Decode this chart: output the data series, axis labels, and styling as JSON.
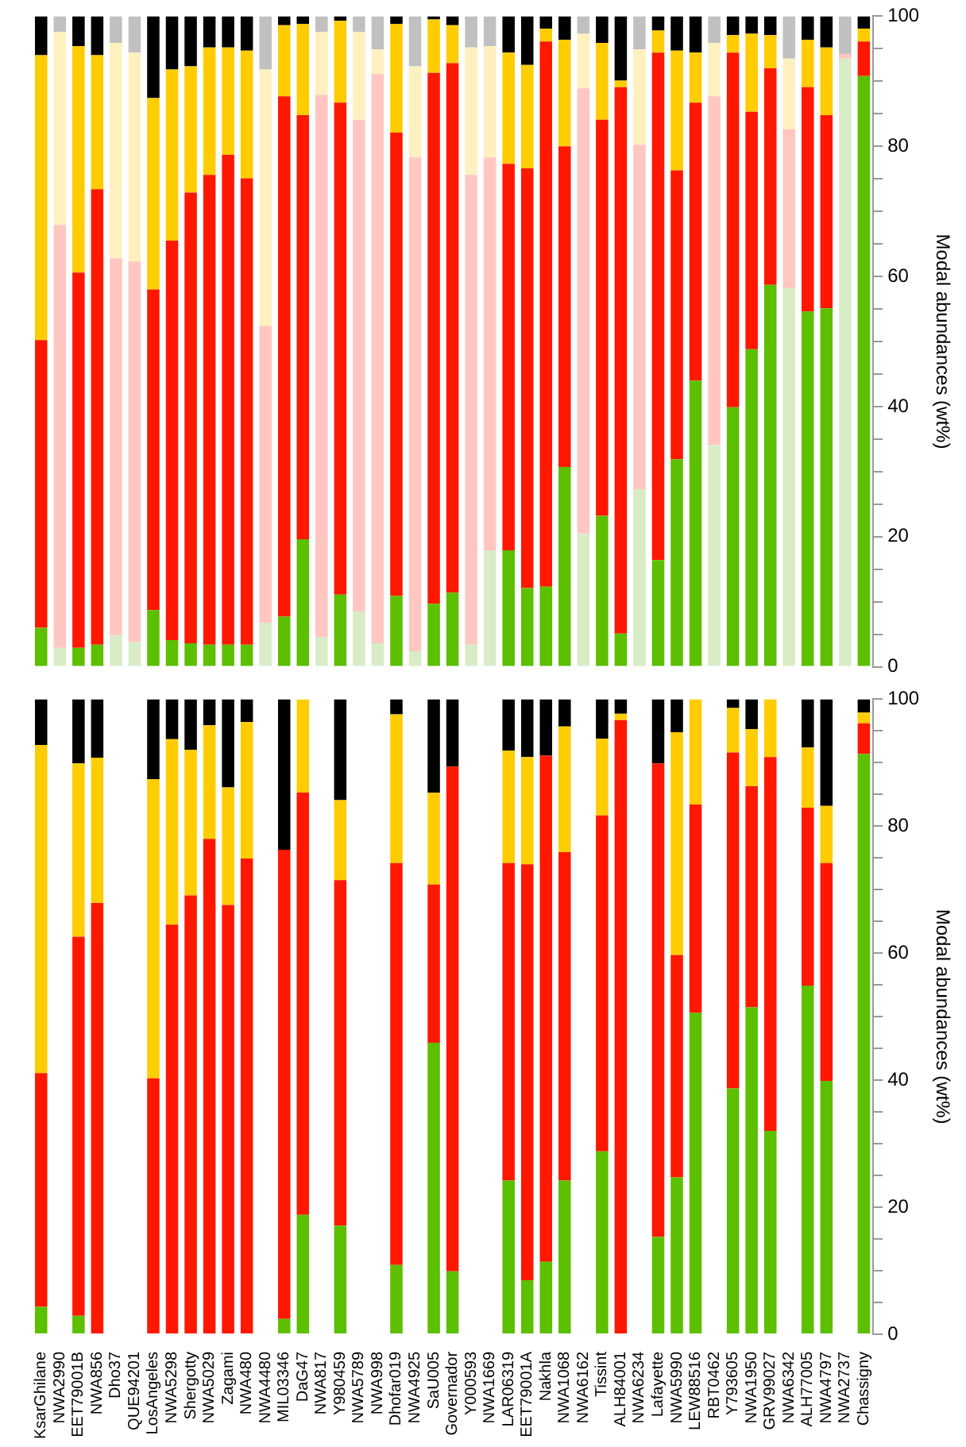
{
  "chart_data": [
    {
      "type": "bar",
      "stacked": true,
      "tick_labels": "y",
      "legend": false,
      "ylabel": "Modal abundances (wt%)",
      "categories": [
        null,
        null,
        null,
        null,
        null,
        null,
        null,
        null,
        null,
        null,
        null,
        null,
        null,
        null,
        null,
        null,
        null,
        null,
        null,
        null,
        null,
        null,
        null,
        null,
        null,
        null,
        null,
        null,
        null,
        null,
        null,
        null,
        null,
        null,
        null,
        null,
        null,
        null,
        null,
        null,
        null,
        null,
        null,
        null,
        null
      ],
      "ylim": [
        0,
        100
      ],
      "yticks": [
        0,
        {
          "value": 5,
          "label": null
        },
        {
          "value": 10,
          "label": null
        },
        {
          "value": 15,
          "label": null
        },
        20,
        {
          "value": 25,
          "label": null
        },
        {
          "value": 30,
          "label": null
        },
        {
          "value": 35,
          "label": null
        },
        40,
        {
          "value": 45,
          "label": null
        },
        {
          "value": 50,
          "label": null
        },
        {
          "value": 55,
          "label": null
        },
        60,
        {
          "value": 65,
          "label": null
        },
        {
          "value": 70,
          "label": null
        },
        {
          "value": 75,
          "label": null
        },
        80,
        {
          "value": 85,
          "label": null
        },
        {
          "value": 90,
          "label": null
        },
        {
          "value": 95,
          "label": null
        },
        100
      ],
      "series": [
        {
          "colors": [
            "#5cbf00",
            "#d8ecc6",
            "#5cbf00",
            "#5cbf00",
            "#d8ecc6",
            "#d8ecc6",
            "#5cbf00",
            "#5cbf00",
            "#5cbf00",
            "#5cbf00",
            "#5cbf00",
            "#5cbf00",
            "#d8ecc6",
            "#5cbf00",
            "#5cbf00",
            "#d8ecc6",
            "#5cbf00",
            "#d8ecc6",
            "#d8ecc6",
            "#5cbf00",
            "#d8ecc6",
            "#5cbf00",
            "#5cbf00",
            "#d8ecc6",
            "#d8ecc6",
            "#5cbf00",
            "#5cbf00",
            "#5cbf00",
            "#5cbf00",
            "#d8ecc6",
            "#5cbf00",
            "#5cbf00",
            "#d8ecc6",
            "#5cbf00",
            "#5cbf00",
            "#5cbf00",
            "#d8ecc6",
            "#5cbf00",
            "#5cbf00",
            "#5cbf00",
            "#d8ecc6",
            "#5cbf00",
            "#5cbf00",
            "#d8ecc6",
            "#5cbf00"
          ],
          "values": [
            6,
            2.9,
            2.9,
            3.4,
            4.8,
            3.8,
            8.7,
            4.1,
            3.6,
            3.4,
            3.4,
            3.4,
            6.8,
            7.7,
            19.6,
            4.6,
            11.1,
            8.5,
            3.6,
            10.9,
            2.4,
            9.7,
            11.4,
            3.4,
            17.9,
            17.9,
            12.1,
            12.3,
            30.7,
            20.5,
            23.2,
            5.1,
            27.3,
            16.4,
            31.9,
            44,
            34.1,
            39.9,
            48.8,
            58.7,
            58.2,
            54.6,
            55.1,
            93.5,
            90.8
          ]
        },
        {
          "colors": [
            "#ff1700",
            "#ffc6c2",
            "#ff1700",
            "#ff1700",
            "#ffc6c2",
            "#ffc6c2",
            "#ff1700",
            "#ff1700",
            "#ff1700",
            "#ff1700",
            "#ff1700",
            "#ff1700",
            "#ffc6c2",
            "#ff1700",
            "#ff1700",
            "#ffc6c2",
            "#ff1700",
            "#ffc6c2",
            "#ffc6c2",
            "#ff1700",
            "#ffc6c2",
            "#ff1700",
            "#ff1700",
            "#ffc6c2",
            "#ffc6c2",
            "#ff1700",
            "#ff1700",
            "#ff1700",
            "#ff1700",
            "#ffc6c2",
            "#ff1700",
            "#ff1700",
            "#ffc6c2",
            "#ff1700",
            "#ff1700",
            "#ff1700",
            "#ffc6c2",
            "#ff1700",
            "#ff1700",
            "#ff1700",
            "#ffc6c2",
            "#ff1700",
            "#ff1700",
            "#ffc6c2",
            "#ff1700"
          ],
          "values": [
            44.2,
            65,
            57.7,
            70,
            58,
            58.5,
            49.3,
            61.4,
            69.3,
            72.2,
            75.3,
            71.7,
            45.6,
            80,
            65.2,
            83.3,
            75.6,
            75.6,
            87.5,
            71.2,
            75.9,
            81.6,
            81.4,
            72.2,
            60.4,
            59.4,
            64.5,
            83.8,
            49.3,
            68.4,
            60.9,
            84,
            52.9,
            78,
            44.4,
            42.7,
            53.6,
            54.5,
            36.5,
            33.3,
            24.4,
            34.5,
            29.7,
            0.7,
            5.3
          ]
        },
        {
          "colors": [
            "#ffcc00",
            "#fff0c0",
            "#ffcc00",
            "#ffcc00",
            "#fff0c0",
            "#fff0c0",
            "#ffcc00",
            "#ffcc00",
            "#ffcc00",
            "#ffcc00",
            "#ffcc00",
            "#ffcc00",
            "#fff0c0",
            "#ffcc00",
            "#ffcc00",
            "#fff0c0",
            "#ffcc00",
            "#fff0c0",
            "#fff0c0",
            "#ffcc00",
            "#fff0c0",
            "#ffcc00",
            "#ffcc00",
            "#fff0c0",
            "#fff0c0",
            "#ffcc00",
            "#ffcc00",
            "#ffcc00",
            "#ffcc00",
            "#fff0c0",
            "#ffcc00",
            "#ffcc00",
            "#fff0c0",
            "#ffcc00",
            "#ffcc00",
            "#ffcc00",
            "#fff0c0",
            "#ffcc00",
            "#ffcc00",
            "#ffcc00",
            "#fff0c0",
            "#ffcc00",
            "#ffcc00",
            "#fff0c0",
            "#ffcc00"
          ],
          "values": [
            43.8,
            29.7,
            34.8,
            20.6,
            33.1,
            32.1,
            29.4,
            26.3,
            19.4,
            19.6,
            16.5,
            19.6,
            39.4,
            10.9,
            14,
            9.7,
            12.6,
            13.5,
            3.8,
            16.7,
            14,
            8.2,
            5.8,
            19.6,
            17.1,
            17.1,
            15.9,
            2,
            16.4,
            8.4,
            11.8,
            1,
            14.7,
            3.4,
            18.4,
            7.7,
            8.2,
            2.7,
            12,
            5.1,
            10.9,
            7.3,
            10.4,
            null,
            2
          ]
        },
        {
          "color": "#000000",
          "values": [
            6,
            null,
            4.6,
            6,
            null,
            null,
            12.6,
            8.2,
            7.7,
            4.8,
            4.8,
            5.3,
            null,
            1.4,
            1.2,
            null,
            0.7,
            null,
            null,
            1.2,
            null,
            0.5,
            1.4,
            null,
            null,
            5.6,
            7.5,
            1.9,
            3.6,
            null,
            4.1,
            9.9,
            null,
            2.2,
            5.3,
            5.6,
            null,
            2.9,
            2.7,
            2.9,
            null,
            3.6,
            4.8,
            null,
            1.9
          ]
        },
        {
          "color": "#c0c0c0",
          "values": [
            null,
            2.4,
            null,
            null,
            4.1,
            5.6,
            null,
            null,
            null,
            null,
            null,
            null,
            8.2,
            null,
            null,
            2.4,
            null,
            2.4,
            5.1,
            null,
            7.7,
            null,
            null,
            4.8,
            4.6,
            null,
            null,
            null,
            null,
            2.7,
            null,
            null,
            5.1,
            null,
            null,
            null,
            4.1,
            null,
            null,
            null,
            6.5,
            null,
            null,
            5.8,
            null
          ]
        }
      ]
    },
    {
      "type": "bar",
      "stacked": true,
      "legend": false,
      "ylabel": "Modal abundances (wt%)",
      "categories": [
        "KsarGhilane",
        "NWA2990",
        "EET79001B",
        "NWA856",
        "Dho37",
        "QUE94201",
        "LosAngeles",
        "NWA5298",
        "Shergotty",
        "NWA5029",
        "Zagami",
        "NWA480",
        "NWA4480",
        "MIL03346",
        "DaG47",
        "NWA817",
        "Y980459",
        "NWA5789",
        "NWA998",
        "Dhofar019",
        "NWA4925",
        "SaU005",
        "Governador",
        "Y000593",
        "NWA1669",
        "LAR06319",
        "EET79001A",
        "Nakhla",
        "NWA1068",
        "NWA6162",
        "Tissint",
        "ALH84001",
        "NWA6234",
        "Lafayette",
        "NWA5990",
        "LEW88516",
        "RBT0462",
        "Y793605",
        "NWA1950",
        "GRV99027",
        "NWA6342",
        "ALH77005",
        "NWA4797",
        "NWA2737",
        "Chassigny"
      ],
      "ylim": [
        0,
        100
      ],
      "yticks": [
        0,
        {
          "value": 5,
          "label": null
        },
        {
          "value": 10,
          "label": null
        },
        {
          "value": 15,
          "label": null
        },
        20,
        {
          "value": 25,
          "label": null
        },
        {
          "value": 30,
          "label": null
        },
        {
          "value": 35,
          "label": null
        },
        40,
        {
          "value": 45,
          "label": null
        },
        {
          "value": 50,
          "label": null
        },
        {
          "value": 55,
          "label": null
        },
        60,
        {
          "value": 65,
          "label": null
        },
        {
          "value": 70,
          "label": null
        },
        {
          "value": 75,
          "label": null
        },
        80,
        {
          "value": 85,
          "label": null
        },
        {
          "value": 90,
          "label": null
        },
        {
          "value": 95,
          "label": null
        },
        100
      ],
      "series": [
        {
          "color": "#5cbf00",
          "values": [
            4.3,
            null,
            2.9,
            null,
            null,
            null,
            null,
            null,
            null,
            null,
            null,
            null,
            null,
            2.4,
            18.8,
            null,
            17.1,
            null,
            null,
            10.9,
            null,
            45.9,
            9.9,
            null,
            null,
            24.2,
            8.5,
            11.4,
            24.2,
            null,
            28.8,
            null,
            null,
            15.3,
            24.7,
            50.6,
            null,
            38.7,
            51.5,
            32,
            null,
            54.9,
            39.9,
            null,
            91.4
          ]
        },
        {
          "color": "#ff1700",
          "values": [
            36.8,
            null,
            59.7,
            67.9,
            null,
            null,
            40.3,
            64.5,
            69.1,
            78,
            67.6,
            74.9,
            null,
            73.9,
            66.5,
            null,
            54.4,
            null,
            null,
            63.3,
            null,
            24.9,
            79.5,
            null,
            null,
            50,
            65.5,
            79.7,
            51.7,
            null,
            52.9,
            96.7,
            null,
            74.6,
            35,
            32.8,
            null,
            52.9,
            34.8,
            58.9,
            null,
            28,
            34.3,
            null,
            4.8
          ]
        },
        {
          "color": "#ffcc00",
          "values": [
            51.7,
            null,
            27.3,
            22.9,
            null,
            null,
            47.1,
            29.2,
            22.9,
            17.9,
            18.5,
            21.5,
            null,
            null,
            14.7,
            null,
            12.6,
            null,
            null,
            23.4,
            null,
            14.5,
            null,
            null,
            null,
            17.7,
            16.9,
            null,
            19.8,
            null,
            12.1,
            1,
            null,
            null,
            35.1,
            16.6,
            null,
            7,
            9,
            9.1,
            null,
            9.5,
            9,
            null,
            1.7
          ]
        },
        {
          "color": "#000000",
          "values": [
            7.2,
            null,
            10.1,
            9.2,
            null,
            null,
            12.6,
            6.3,
            8,
            4.1,
            13.9,
            3.6,
            null,
            23.7,
            null,
            null,
            15.9,
            null,
            null,
            2.4,
            null,
            14.7,
            10.6,
            null,
            null,
            8.1,
            9.1,
            8.9,
            4.3,
            null,
            6.2,
            2.3,
            null,
            10.1,
            5.2,
            null,
            null,
            1.4,
            4.7,
            null,
            null,
            7.6,
            16.8,
            null,
            2.1
          ]
        }
      ]
    }
  ]
}
